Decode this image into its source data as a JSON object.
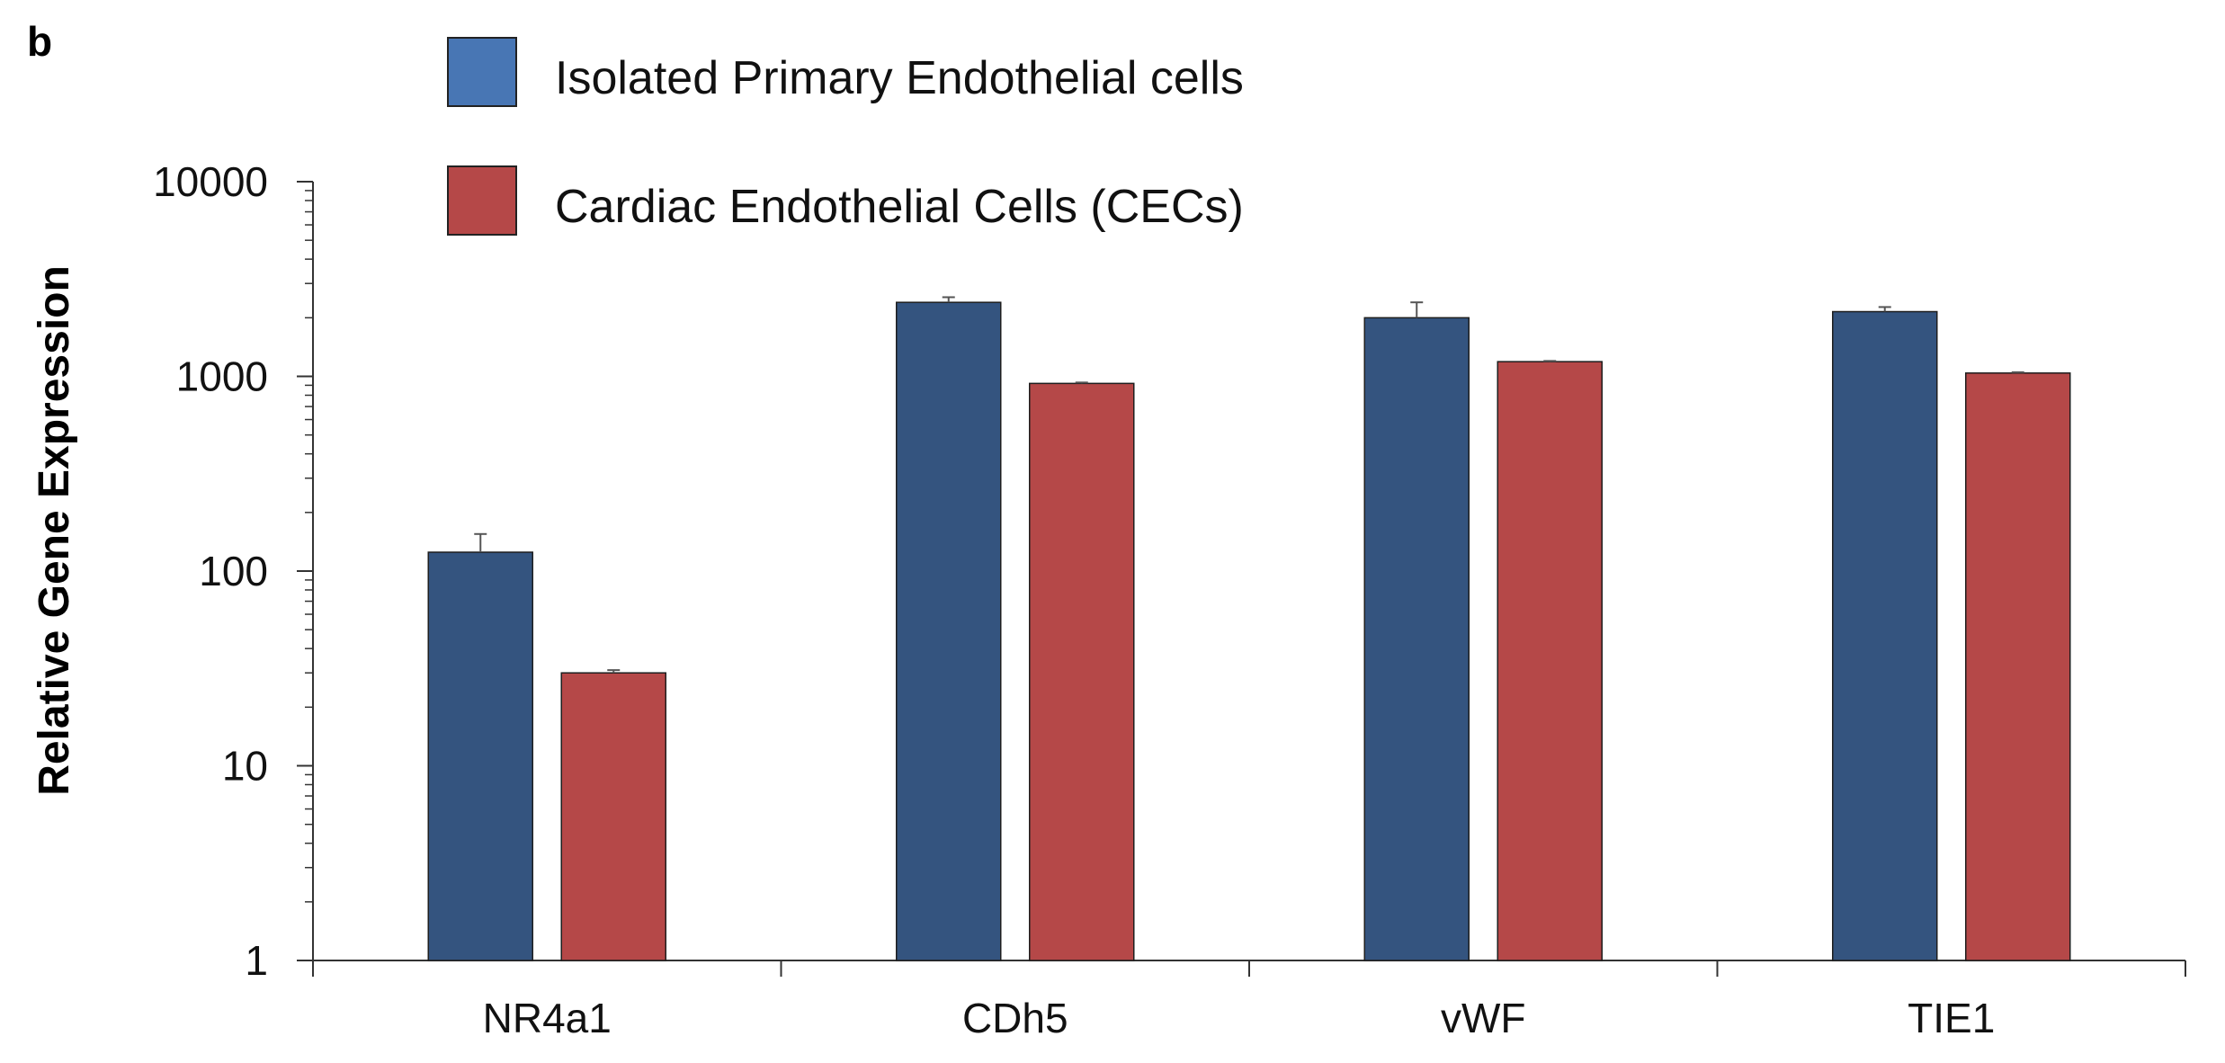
{
  "panel_label": "b",
  "chart_data": {
    "type": "bar",
    "title": "",
    "xlabel": "",
    "ylabel": "Relative Gene Expression",
    "yscale": "log",
    "ylim": [
      1,
      10000
    ],
    "yticks": [
      1,
      10,
      100,
      1000,
      10000
    ],
    "ytick_labels": [
      "1",
      "10",
      "100",
      "1000",
      "10000"
    ],
    "grid": false,
    "legend_position": "top-center",
    "categories": [
      "NR4a1",
      "CDh5",
      "vWF",
      "TIE1"
    ],
    "series": [
      {
        "name": "Isolated Primary Endothelial cells",
        "color": "#34547f",
        "values": [
          125,
          2400,
          2000,
          2150
        ],
        "errors": [
          30,
          150,
          400,
          120
        ]
      },
      {
        "name": "Cardiac Endothelial Cells (CECs)",
        "color": "#b54848",
        "values": [
          30,
          920,
          1190,
          1040
        ],
        "errors": [
          1,
          10,
          10,
          10
        ]
      }
    ],
    "legend_colors": [
      "#4876b4",
      "#b54848"
    ]
  }
}
